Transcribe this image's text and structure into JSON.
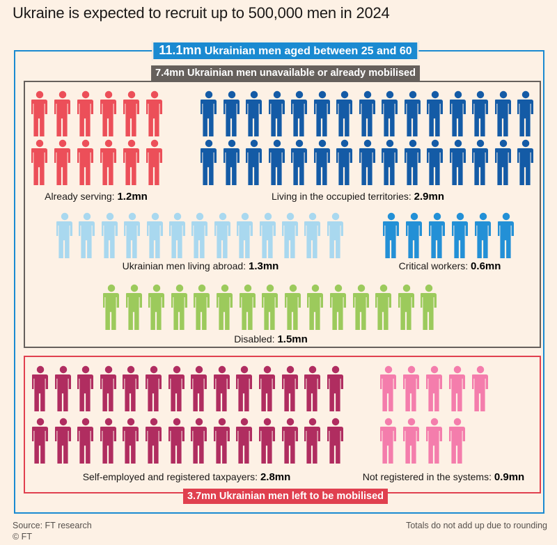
{
  "title": "Ukraine is expected to recruit up to 500,000 men in 2024",
  "outer_box": {
    "value": "11.1mn",
    "label": "Ukrainian men aged between 25 and 60",
    "color": "#1a8ad1"
  },
  "unavailable_box": {
    "label": "7.4mn Ukrainian men unavailable or already mobilised",
    "color": "#66605c"
  },
  "left_box": {
    "label": "3.7mn Ukrainian men left to be mobilised",
    "color": "#e0404f"
  },
  "groups": [
    {
      "id": "already-serving",
      "label": "Already serving: ",
      "value": "1.2mn",
      "color": "#ec4f59",
      "rows": [
        6,
        6
      ]
    },
    {
      "id": "occupied",
      "label": "Living in the occupied territories: ",
      "value": "2.9mn",
      "color": "#145ba6",
      "rows": [
        15,
        15
      ]
    },
    {
      "id": "abroad",
      "label": "Ukrainian men living abroad: ",
      "value": "1.3mn",
      "color": "#a9d8ef",
      "rows": [
        13
      ]
    },
    {
      "id": "critical",
      "label": "Critical workers: ",
      "value": "0.6mn",
      "color": "#2390d6",
      "rows": [
        6
      ]
    },
    {
      "id": "disabled",
      "label": "Disabled: ",
      "value": "1.5mn",
      "color": "#9cca5c",
      "rows": [
        15
      ]
    },
    {
      "id": "self-employed",
      "label": "Self-employed and registered taxpayers: ",
      "value": "2.8mn",
      "color": "#b02d60",
      "rows": [
        14,
        14
      ]
    },
    {
      "id": "not-registered",
      "label": "Not registered in the systems: ",
      "value": "0.9mn",
      "color": "#f47dac",
      "rows": [
        5,
        4
      ]
    }
  ],
  "footer": {
    "source": "Source: FT research",
    "copyright": "© FT",
    "note": "Totals do not add up due to rounding"
  }
}
